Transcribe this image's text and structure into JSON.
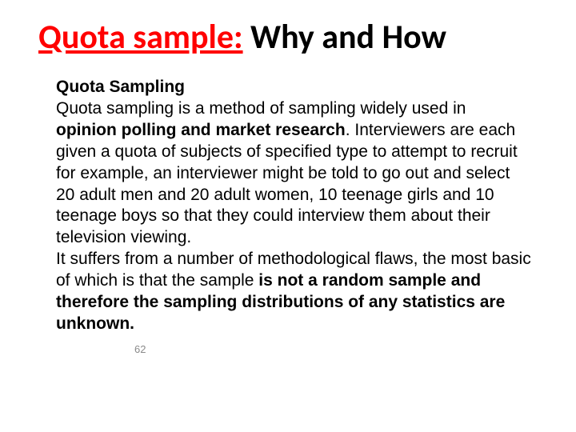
{
  "title": {
    "red_part": "Quota sample:",
    "black_part": " Why and How"
  },
  "body": {
    "subheading": "Quota Sampling",
    "line1_a": "Quota sampling is a method of sampling widely used in ",
    "line1_bold": "opinion polling and market research",
    "period1": ". ",
    "para2": "Interviewers are each given a quota of subjects of specified type to attempt to recruit for example, an interviewer might be told to go out and select 20 adult men and 20 adult women, 10 teenage girls and 10 teenage boys so that they could interview them about their television viewing.",
    "para3_a": "It suffers from a number of methodological flaws, the most basic of which is that the sample ",
    "para3_bold": "is not a random sample and therefore the sampling distributions of any statistics are unknown."
  },
  "footer": {
    "page_number": "62"
  },
  "colors": {
    "title_red": "#ff0000",
    "text_black": "#000000",
    "footer_gray": "#8a8a8a",
    "background": "#ffffff"
  }
}
